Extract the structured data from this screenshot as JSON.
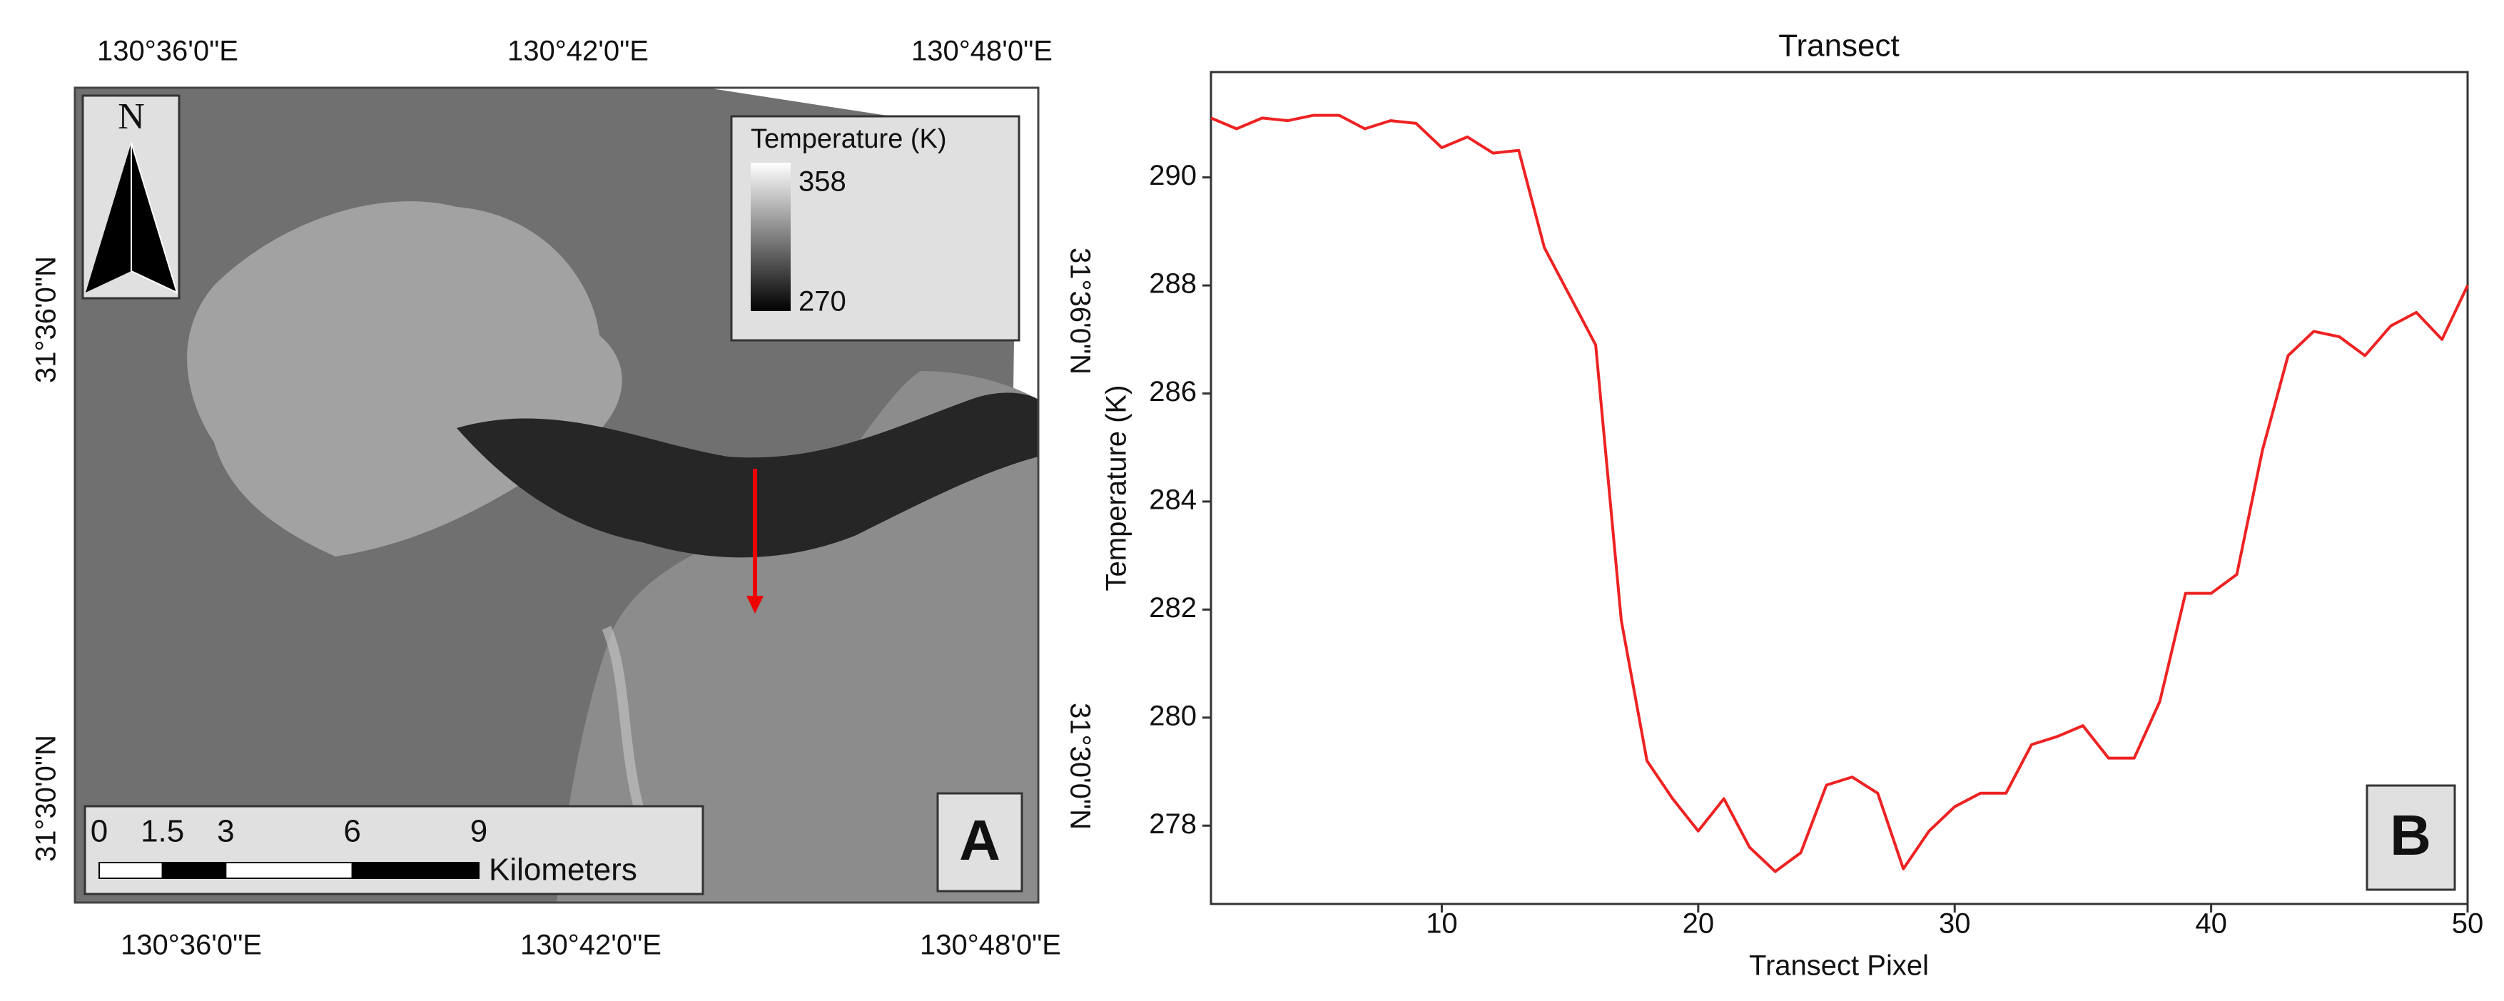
{
  "map": {
    "panel_label": "A",
    "top_labels": [
      "130°36'0\"E",
      "130°42'0\"E",
      "130°48'0\"E"
    ],
    "bottom_labels": [
      "130°36'0\"E",
      "130°42'0\"E",
      "130°48'0\"E"
    ],
    "left_labels": [
      "31°36'0\"N",
      "31°30'0\"N"
    ],
    "right_labels": [
      "31°36'0\"N",
      "31°30'0\"N"
    ],
    "north": "N",
    "legend": {
      "title": "Temperature (K)",
      "max": "358",
      "min": "270"
    },
    "scale_bar": {
      "ticks": [
        0,
        1.5,
        3,
        6,
        9
      ],
      "unit": "Kilometers"
    }
  },
  "chart_data": {
    "type": "line",
    "title": "Transect",
    "x_label": "Transect Pixel",
    "y_label": "Temperature (K)",
    "panel_label": "B",
    "x": [
      1,
      2,
      3,
      4,
      5,
      6,
      7,
      8,
      9,
      10,
      11,
      12,
      13,
      14,
      15,
      16,
      17,
      18,
      19,
      20,
      21,
      22,
      23,
      24,
      25,
      26,
      27,
      28,
      29,
      30,
      31,
      32,
      33,
      34,
      35,
      36,
      37,
      38,
      39,
      40,
      41,
      42,
      43,
      44,
      45,
      46,
      47,
      48,
      49,
      50
    ],
    "values": [
      291.1,
      290.9,
      291.1,
      291.05,
      291.15,
      291.15,
      290.9,
      291.05,
      291.0,
      290.55,
      290.75,
      290.45,
      290.5,
      288.7,
      287.8,
      286.9,
      281.8,
      279.2,
      278.5,
      277.9,
      278.5,
      277.6,
      277.15,
      277.5,
      278.75,
      278.9,
      278.6,
      277.2,
      277.9,
      278.35,
      278.6,
      278.6,
      279.5,
      279.65,
      279.85,
      279.25,
      279.25,
      280.3,
      282.3,
      282.3,
      282.65,
      284.95,
      286.7,
      287.15,
      287.05,
      286.7,
      287.25,
      287.5,
      287.0,
      288.0
    ],
    "color": "#ee2222",
    "xlim": [
      1,
      50
    ],
    "xticks": [
      10,
      20,
      30,
      40,
      50
    ],
    "ylim": [
      276.55,
      291.95
    ],
    "yticks": [
      278,
      280,
      282,
      284,
      286,
      288,
      290
    ],
    "grid": false
  }
}
